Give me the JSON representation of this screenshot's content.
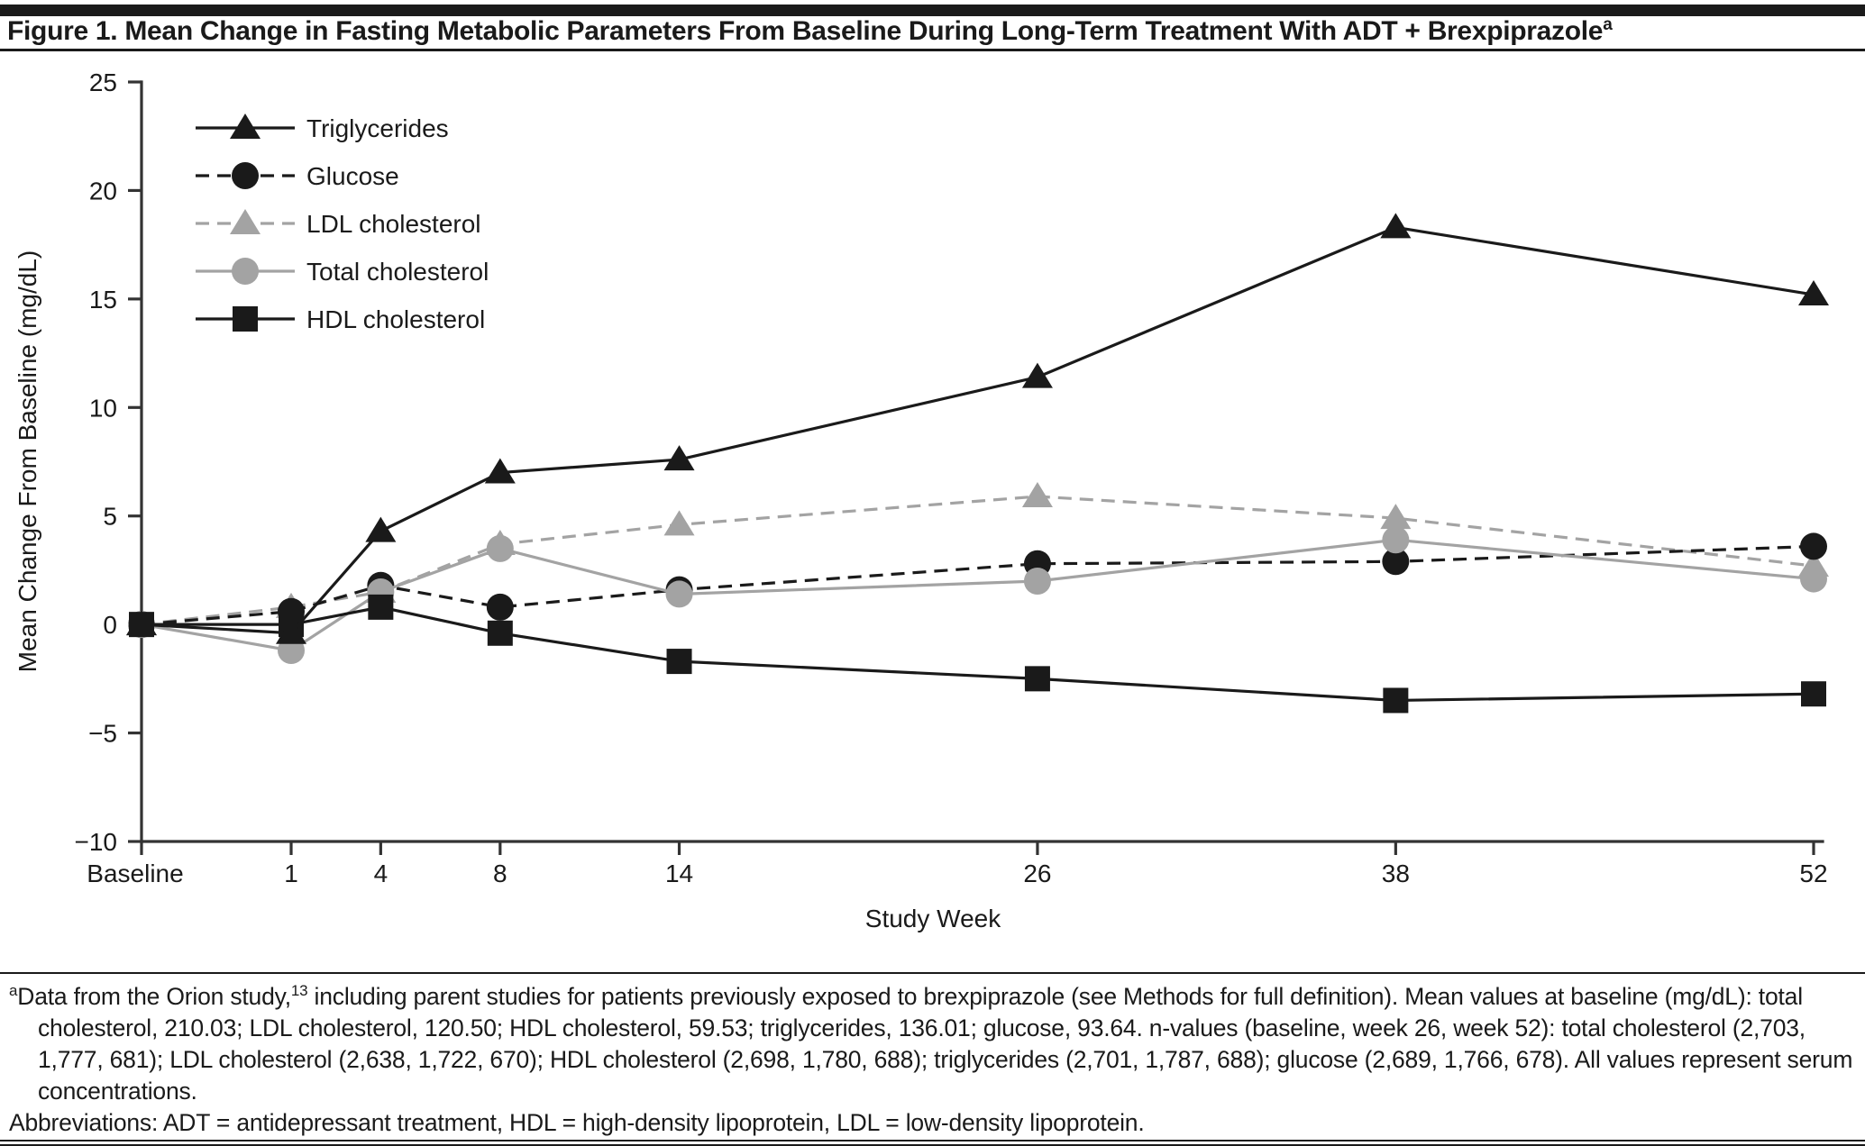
{
  "figure": {
    "title": "Figure 1. Mean Change in Fasting Metabolic Parameters From Baseline During Long-Term Treatment With ADT + Brexpiprazole",
    "title_superscript": "a"
  },
  "chart_data": {
    "type": "line",
    "title": "",
    "xlabel": "Study Week",
    "ylabel": "Mean Change From Baseline (mg/dL)",
    "ylim": [
      -10,
      25
    ],
    "yticks": [
      25,
      20,
      15,
      10,
      5,
      0,
      -5,
      -10
    ],
    "categories": [
      "Baseline",
      1,
      4,
      8,
      14,
      26,
      38,
      52
    ],
    "grid": false,
    "legend_position": "top-left-inside",
    "colors": {
      "black": "#1a1a1a",
      "gray": "#a3a3a3",
      "axis": "#333333"
    },
    "series": [
      {
        "name": "Triglycerides",
        "color": "#1a1a1a",
        "line_style": "solid",
        "marker": "triangle",
        "values": [
          0,
          -0.4,
          4.3,
          7.0,
          7.6,
          11.4,
          18.3,
          15.2
        ]
      },
      {
        "name": "Glucose",
        "color": "#1a1a1a",
        "line_style": "dashed",
        "marker": "circle",
        "values": [
          0,
          0.6,
          1.8,
          0.8,
          1.6,
          2.8,
          2.9,
          3.6
        ]
      },
      {
        "name": "LDL cholesterol",
        "color": "#a3a3a3",
        "line_style": "dashed",
        "marker": "triangle",
        "values": [
          0,
          0.8,
          1.5,
          3.7,
          4.6,
          5.9,
          4.9,
          2.7
        ]
      },
      {
        "name": "Total cholesterol",
        "color": "#a3a3a3",
        "line_style": "solid",
        "marker": "circle",
        "values": [
          0,
          -1.2,
          1.5,
          3.5,
          1.4,
          2.0,
          3.9,
          2.1
        ]
      },
      {
        "name": "HDL cholesterol",
        "color": "#1a1a1a",
        "line_style": "solid",
        "marker": "square",
        "values": [
          0,
          0.0,
          0.8,
          -0.4,
          -1.7,
          -2.5,
          -3.5,
          -3.2
        ]
      }
    ]
  },
  "footnote": {
    "marker": "a",
    "part1": "Data from the Orion study,",
    "reference": "13",
    "part2": " including parent studies for patients previously exposed to brexpiprazole (see Methods for full definition). Mean values at baseline (mg/dL): total cholesterol, 210.03; LDL cholesterol, 120.50; HDL cholesterol, 59.53; triglycerides, 136.01; glucose, 93.64. n-values (baseline, week 26, week 52): total cholesterol (2,703, 1,777, 681); LDL cholesterol (2,638, 1,722, 670); HDL cholesterol (2,698, 1,780, 688); triglycerides (2,701, 1,787, 688); glucose (2,689, 1,766, 678). All values represent serum concentrations.",
    "abbreviations": "Abbreviations: ADT = antidepressant treatment, HDL = high-density lipoprotein, LDL = low-density lipoprotein."
  }
}
